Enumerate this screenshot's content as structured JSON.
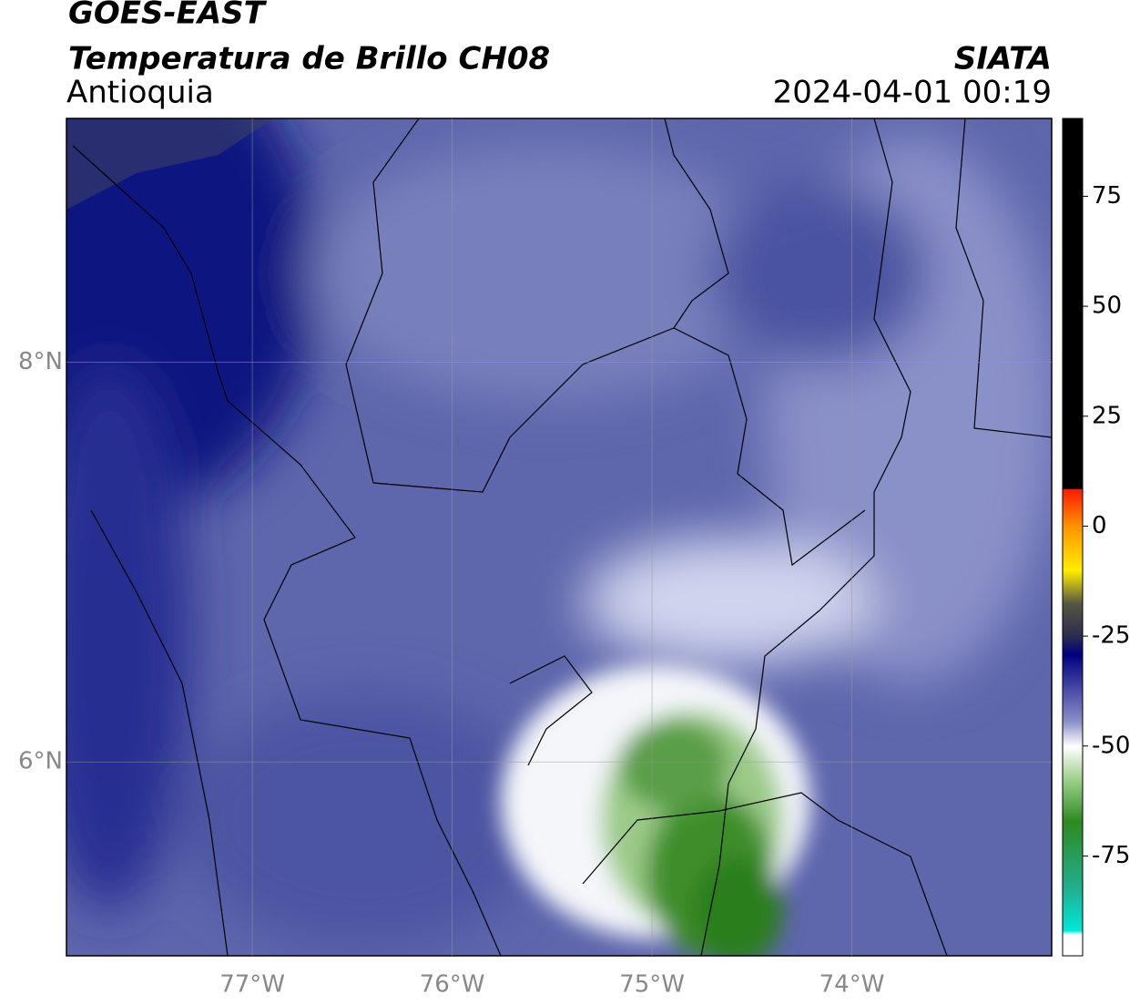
{
  "header": {
    "title": "GOES-EAST",
    "subtitle": "Temperatura de Brillo CH08",
    "region": "Antioquia",
    "source": "SIATA",
    "datetime": "2024-04-01 00:19"
  },
  "map": {
    "xlim": [
      -77.93,
      -73.0
    ],
    "ylim": [
      5.03,
      9.22
    ],
    "xticks": [
      {
        "value": -77,
        "label": "77°W"
      },
      {
        "value": -76,
        "label": "76°W"
      },
      {
        "value": -75,
        "label": "75°W"
      },
      {
        "value": -74,
        "label": "74°W"
      }
    ],
    "yticks": [
      {
        "value": 8,
        "label": "8°N"
      },
      {
        "value": 6,
        "label": "6°N"
      }
    ],
    "grid": true
  },
  "colorbar": {
    "lim": [
      -97.7,
      92.7
    ],
    "ticks": [
      75,
      50,
      25,
      0,
      -25,
      -50,
      -75
    ]
  }
}
